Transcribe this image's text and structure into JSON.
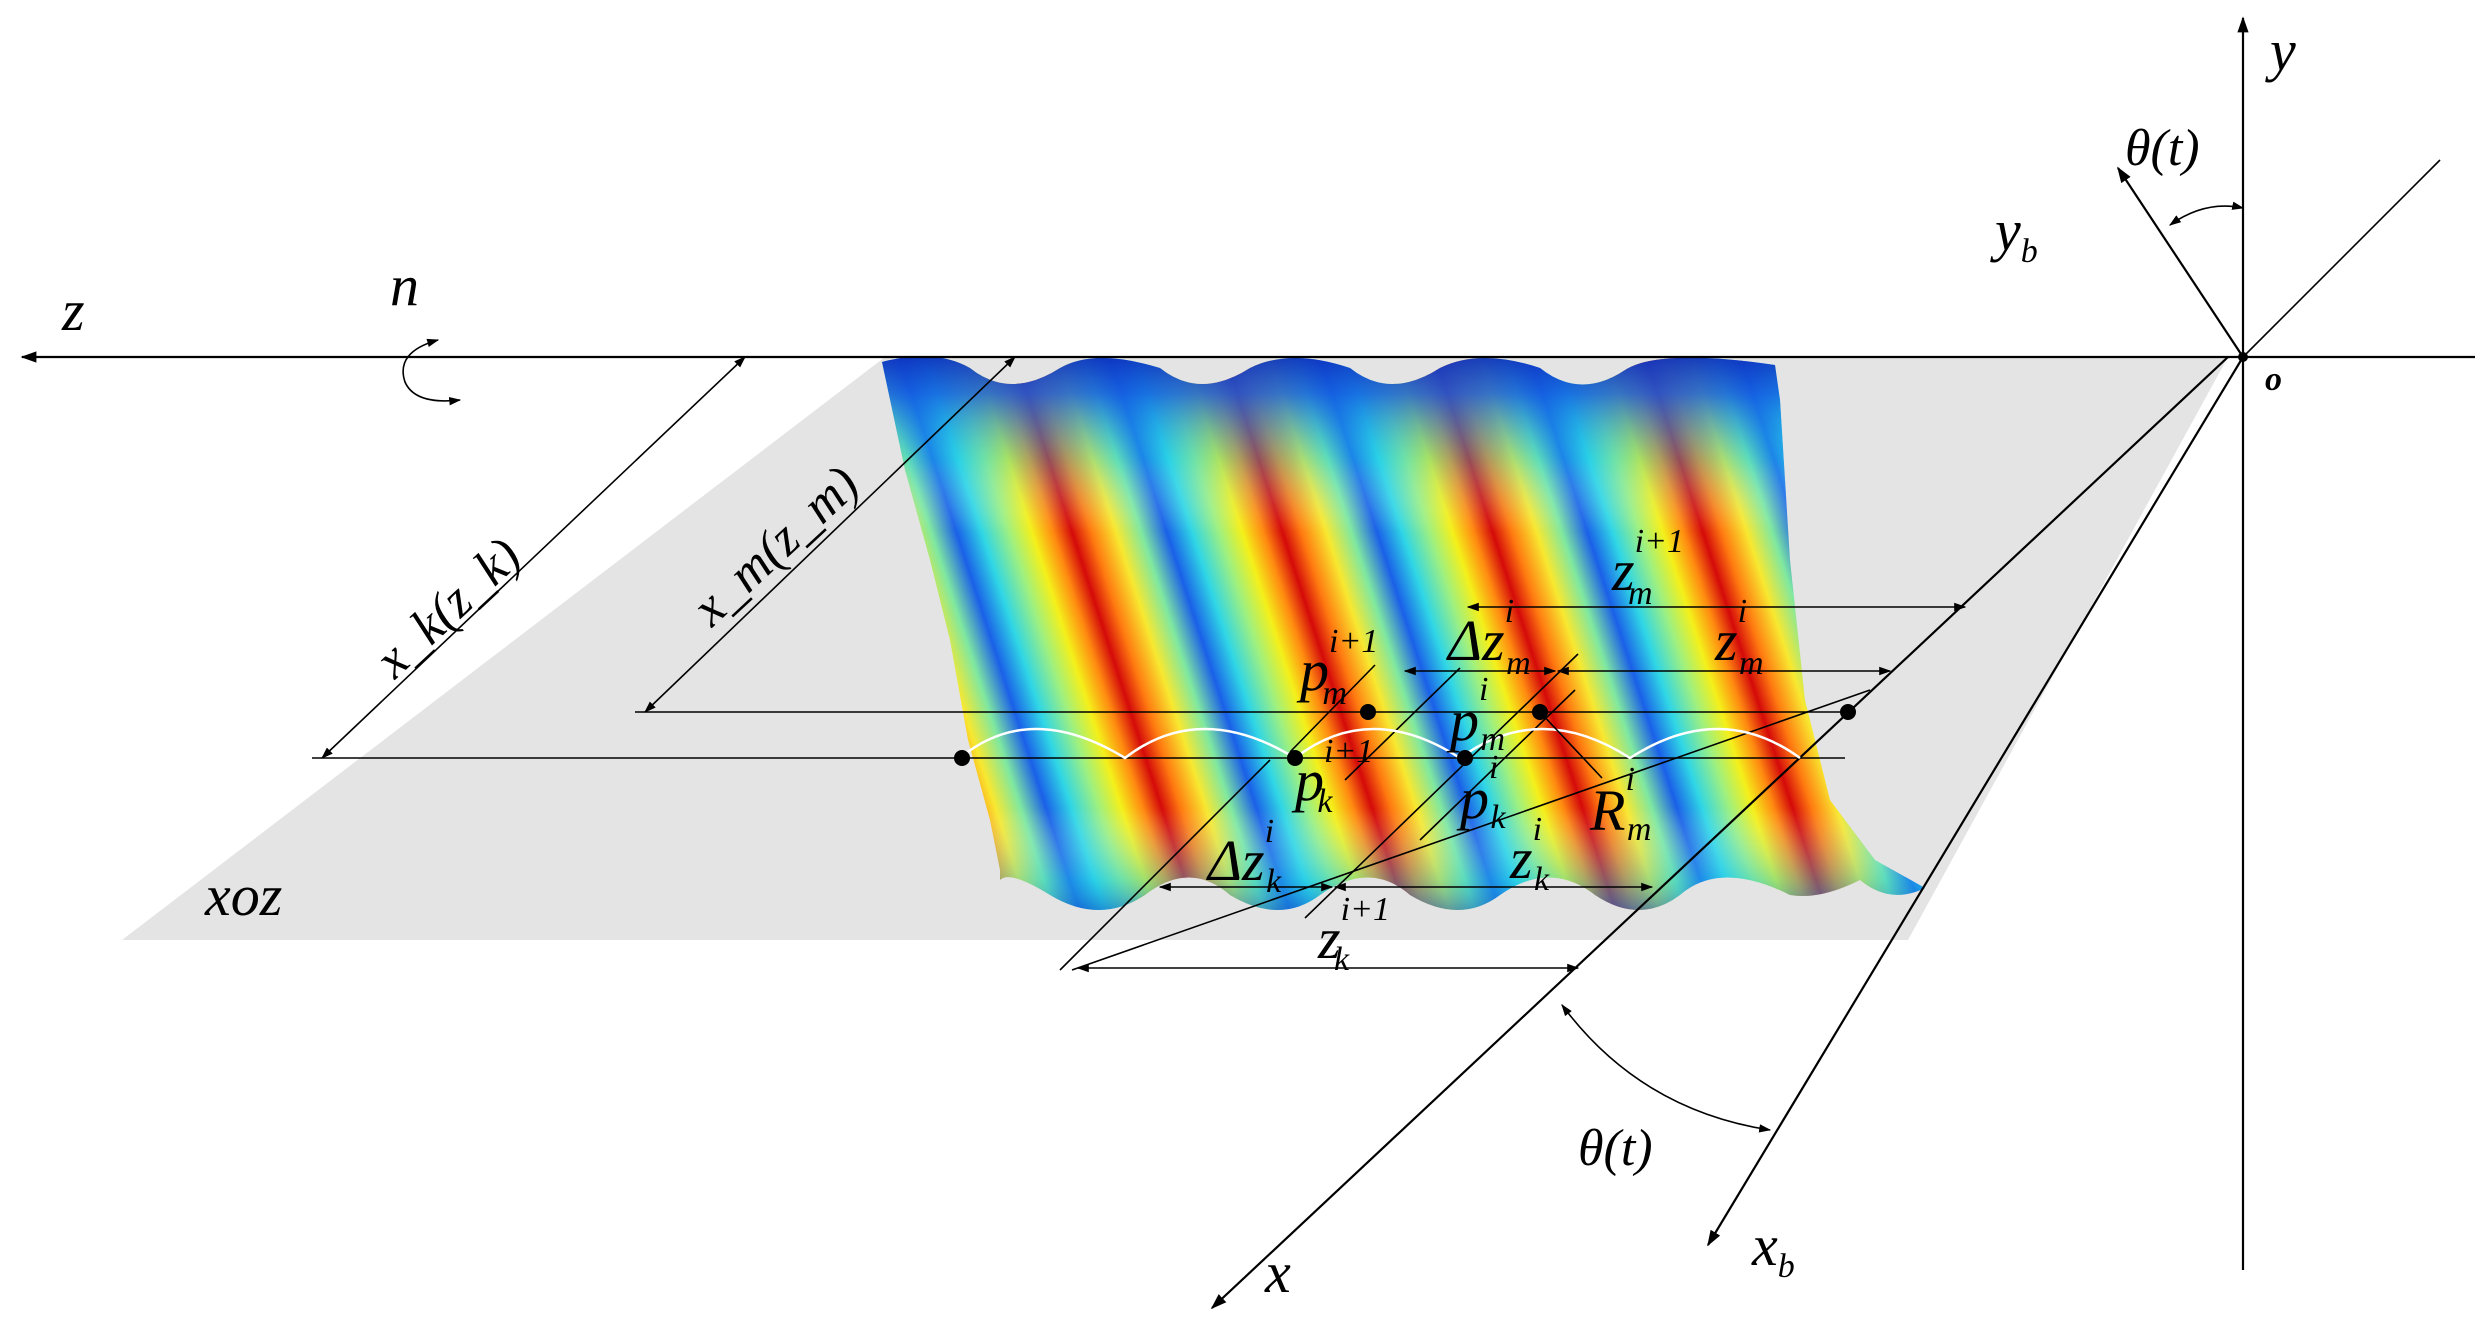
{
  "labels": {
    "y": "y",
    "z": "z",
    "x": "x",
    "o": "o",
    "n": "n",
    "yb_main": "y",
    "yb_sub": "b",
    "xb_main": "x",
    "xb_sub": "b",
    "theta_top": "θ(t)",
    "theta_bottom": "θ(t)",
    "plane": "xoz",
    "xk_zk": "x_k(z_k)",
    "xm_zm": "x_m(z_m)"
  },
  "points": {
    "p_m_i1": {
      "base": "p",
      "sub": "m",
      "sup": "i+1"
    },
    "p_m_i": {
      "base": "p",
      "sub": "m",
      "sup": "i"
    },
    "p_k_i1": {
      "base": "p",
      "sub": "k",
      "sup": "i+1"
    },
    "p_k_i": {
      "base": "p",
      "sub": "k",
      "sup": "i"
    },
    "R_m_i": {
      "base": "R",
      "sub": "m",
      "sup": "i"
    }
  },
  "dimensions": {
    "z_m_i1": {
      "base": "z",
      "sub": "m",
      "sup": "i+1"
    },
    "dz_m_i": {
      "base": "Δz",
      "sub": "m",
      "sup": "i"
    },
    "z_m_i": {
      "base": "z",
      "sub": "m",
      "sup": "i"
    },
    "dz_k_i": {
      "base": "Δz",
      "sub": "k",
      "sup": "i"
    },
    "z_k_i": {
      "base": "z",
      "sub": "k",
      "sup": "i"
    },
    "z_k_i1": {
      "base": "z",
      "sub": "k",
      "sup": "i+1"
    }
  },
  "colors": {
    "plane_fill": "#e4e4e4",
    "colormap": "jet",
    "jet_low": "#0a1fb0",
    "jet_mid": "#2fe0d0",
    "jet_yellow": "#f4f01a",
    "jet_high": "#d40a0a"
  }
}
